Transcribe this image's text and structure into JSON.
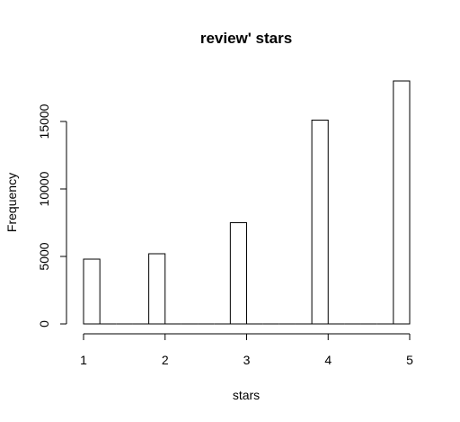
{
  "chart_data": {
    "type": "bar",
    "title": "review' stars",
    "xlabel": "stars",
    "ylabel": "Frequency",
    "x_ticks": [
      "1",
      "2",
      "3",
      "4",
      "5"
    ],
    "y_ticks": [
      "0",
      "5000",
      "10000",
      "15000"
    ],
    "xlim": [
      1,
      5
    ],
    "ylim": [
      0,
      18000
    ],
    "bins": [
      {
        "start": 1.0,
        "end": 1.2,
        "count": 4800
      },
      {
        "start": 1.2,
        "end": 1.4,
        "count": 0
      },
      {
        "start": 1.4,
        "end": 1.6,
        "count": 0
      },
      {
        "start": 1.6,
        "end": 1.8,
        "count": 0
      },
      {
        "start": 1.8,
        "end": 2.0,
        "count": 5200
      },
      {
        "start": 2.0,
        "end": 2.2,
        "count": 0
      },
      {
        "start": 2.2,
        "end": 2.4,
        "count": 0
      },
      {
        "start": 2.4,
        "end": 2.6,
        "count": 0
      },
      {
        "start": 2.6,
        "end": 2.8,
        "count": 0
      },
      {
        "start": 2.8,
        "end": 3.0,
        "count": 7500
      },
      {
        "start": 3.0,
        "end": 3.2,
        "count": 0
      },
      {
        "start": 3.2,
        "end": 3.4,
        "count": 0
      },
      {
        "start": 3.4,
        "end": 3.6,
        "count": 0
      },
      {
        "start": 3.6,
        "end": 3.8,
        "count": 0
      },
      {
        "start": 3.8,
        "end": 4.0,
        "count": 15100
      },
      {
        "start": 4.0,
        "end": 4.2,
        "count": 0
      },
      {
        "start": 4.2,
        "end": 4.4,
        "count": 0
      },
      {
        "start": 4.4,
        "end": 4.6,
        "count": 0
      },
      {
        "start": 4.6,
        "end": 4.8,
        "count": 0
      },
      {
        "start": 4.8,
        "end": 5.0,
        "count": 18000
      }
    ],
    "grid": false,
    "legend": "none"
  }
}
